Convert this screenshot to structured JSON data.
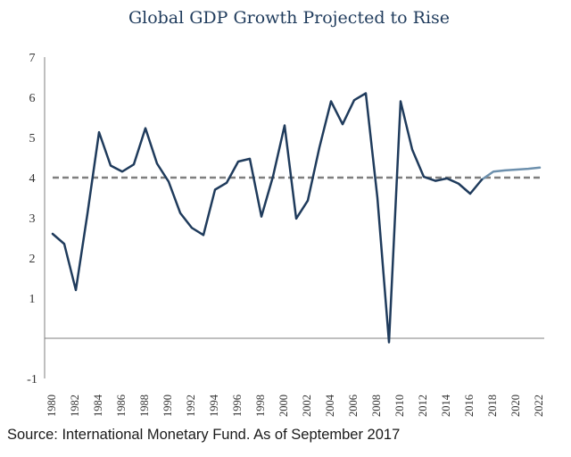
{
  "source_text": "Source: International Monetary Fund. As of September 2017",
  "chart_data": {
    "type": "line",
    "title": "Global GDP Growth Projected to Rise",
    "xlabel": "",
    "ylabel": "",
    "ylim": [
      -1,
      7
    ],
    "yticks": [
      -1,
      1,
      2,
      3,
      4,
      5,
      6,
      7
    ],
    "xticks": [
      1980,
      1982,
      1984,
      1986,
      1988,
      1990,
      1992,
      1994,
      1996,
      1998,
      2000,
      2002,
      2004,
      2006,
      2008,
      2010,
      2012,
      2014,
      2016,
      2018,
      2020,
      2022
    ],
    "grid": false,
    "colors": {
      "historical": "#1f3b5c",
      "projected": "#6d90ad",
      "average": "#7f7f7f",
      "axis": "#7f7f7f",
      "title": "#1f3b5c"
    },
    "series": [
      {
        "style": "historical",
        "x": [
          1980,
          1981,
          1982,
          1983,
          1984,
          1985,
          1986,
          1987,
          1988,
          1989,
          1990,
          1991,
          1992,
          1993,
          1994,
          1995,
          1996,
          1997,
          1998,
          1999,
          2000,
          2001,
          2002,
          2003,
          2004,
          2005,
          2006,
          2007,
          2008,
          2009,
          2010,
          2011,
          2012,
          2013,
          2014,
          2015,
          2016,
          2017
        ],
        "values": [
          2.6,
          2.35,
          1.2,
          3.1,
          5.13,
          4.3,
          4.15,
          4.33,
          5.23,
          4.35,
          3.9,
          3.12,
          2.75,
          2.57,
          3.7,
          3.87,
          4.4,
          4.47,
          3.03,
          4.03,
          5.3,
          2.98,
          3.43,
          4.75,
          5.9,
          5.33,
          5.93,
          6.1,
          3.5,
          -0.1,
          5.9,
          4.7,
          4.02,
          3.92,
          3.98,
          3.85,
          3.6,
          3.95
        ]
      },
      {
        "style": "projected",
        "x": [
          2017,
          2018,
          2019,
          2020,
          2021,
          2022
        ],
        "values": [
          3.95,
          4.15,
          4.18,
          4.2,
          4.22,
          4.25
        ]
      },
      {
        "style": "average",
        "x": [
          1980,
          2022
        ],
        "values": [
          4.0,
          4.0
        ]
      }
    ]
  }
}
